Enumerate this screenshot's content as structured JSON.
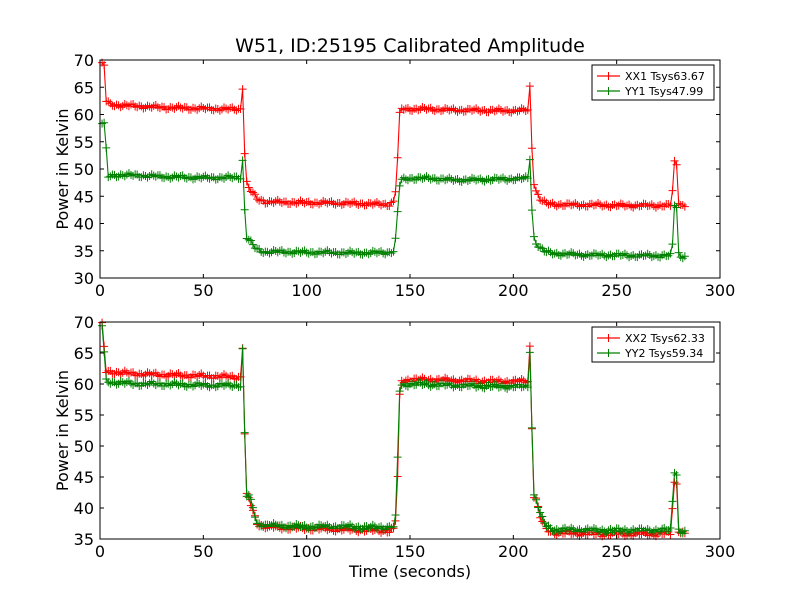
{
  "chart_data": [
    {
      "type": "line",
      "title": "W51, ID:25195 Calibrated Amplitude",
      "xlabel": "",
      "ylabel": "Power in Kelvin",
      "xlim": [
        0,
        300
      ],
      "ylim": [
        30,
        70
      ],
      "xticks": [
        0,
        50,
        100,
        150,
        200,
        250,
        300
      ],
      "yticks": [
        30,
        35,
        40,
        45,
        50,
        55,
        60,
        65,
        70
      ],
      "grid": false,
      "legend_position": "top-right",
      "series": [
        {
          "name": "XX1 Tsys63.67",
          "color": "#ff0000",
          "marker": "+",
          "x": [
            1,
            2,
            3,
            5,
            10,
            20,
            30,
            40,
            50,
            60,
            68,
            69,
            70,
            71,
            72,
            74,
            76,
            80,
            90,
            100,
            110,
            120,
            130,
            140,
            142,
            143,
            144,
            145,
            146,
            150,
            160,
            170,
            180,
            190,
            200,
            207,
            208,
            209,
            210,
            211,
            213,
            216,
            220,
            230,
            240,
            250,
            260,
            270,
            276,
            277,
            278,
            279,
            280,
            281,
            282,
            283
          ],
          "y": [
            69.2,
            69.0,
            62.5,
            61.8,
            61.7,
            61.5,
            61.3,
            61.2,
            61.1,
            61.0,
            61.0,
            65.0,
            53.0,
            47.5,
            46.5,
            45.5,
            44.5,
            44.0,
            43.9,
            43.8,
            43.8,
            43.7,
            43.6,
            43.5,
            44.0,
            46.0,
            52.0,
            60.0,
            61.0,
            61.0,
            61.0,
            60.8,
            60.8,
            60.7,
            60.7,
            60.8,
            65.0,
            54.0,
            47.5,
            46.0,
            44.5,
            43.6,
            43.5,
            43.4,
            43.4,
            43.3,
            43.3,
            43.3,
            43.3,
            46.0,
            51.2,
            50.8,
            44.0,
            43.5,
            43.3,
            43.3
          ]
        },
        {
          "name": "YY1 Tsys47.99",
          "color": "#008000",
          "marker": "+",
          "x": [
            1,
            2,
            3,
            4,
            5,
            10,
            20,
            30,
            40,
            50,
            60,
            68,
            69,
            70,
            71,
            72,
            74,
            76,
            80,
            90,
            100,
            110,
            120,
            130,
            140,
            142,
            143,
            144,
            145,
            146,
            150,
            160,
            170,
            180,
            190,
            200,
            207,
            208,
            209,
            210,
            211,
            213,
            216,
            220,
            230,
            240,
            250,
            260,
            270,
            276,
            277,
            278,
            279,
            280,
            281,
            282,
            283
          ],
          "y": [
            58.5,
            58.3,
            53.5,
            48.5,
            48.8,
            48.9,
            48.8,
            48.6,
            48.5,
            48.4,
            48.4,
            48.5,
            51.5,
            42.5,
            37.5,
            37.0,
            36.0,
            35.2,
            34.8,
            34.8,
            34.7,
            34.7,
            34.6,
            34.6,
            34.7,
            35.0,
            37.0,
            42.0,
            47.0,
            48.0,
            48.3,
            48.3,
            48.0,
            48.0,
            48.1,
            48.2,
            48.3,
            52.0,
            42.5,
            37.5,
            36.5,
            35.5,
            34.7,
            34.5,
            34.3,
            34.2,
            34.2,
            34.1,
            34.1,
            34.1,
            36.0,
            43.5,
            43.0,
            34.5,
            34.0,
            34.0,
            34.0
          ]
        }
      ]
    },
    {
      "type": "line",
      "title": "",
      "xlabel": "Time (seconds)",
      "ylabel": "Power in Kelvin",
      "xlim": [
        0,
        300
      ],
      "ylim": [
        35,
        70
      ],
      "xticks": [
        0,
        50,
        100,
        150,
        200,
        250,
        300
      ],
      "yticks": [
        35,
        40,
        45,
        50,
        55,
        60,
        65,
        70
      ],
      "grid": false,
      "legend_position": "top-right",
      "series": [
        {
          "name": "XX2 Tsys62.33",
          "color": "#ff0000",
          "marker": "+",
          "x": [
            1,
            2,
            3,
            5,
            10,
            20,
            30,
            40,
            50,
            60,
            68,
            69,
            70,
            71,
            72,
            74,
            76,
            80,
            90,
            100,
            110,
            120,
            130,
            140,
            142,
            143,
            144,
            145,
            146,
            150,
            160,
            170,
            180,
            190,
            200,
            207,
            208,
            209,
            210,
            211,
            213,
            216,
            220,
            230,
            240,
            250,
            260,
            270,
            276,
            277,
            278,
            279,
            280,
            281,
            282,
            283
          ],
          "y": [
            69.5,
            66.0,
            62.0,
            62.0,
            61.8,
            61.6,
            61.5,
            61.4,
            61.3,
            61.2,
            61.1,
            66.0,
            52.0,
            42.0,
            41.5,
            39.5,
            37.5,
            37.0,
            36.8,
            36.7,
            36.6,
            36.5,
            36.4,
            36.3,
            36.5,
            38.0,
            45.0,
            58.0,
            60.5,
            60.7,
            60.7,
            60.6,
            60.5,
            60.4,
            60.4,
            60.5,
            66.0,
            53.0,
            42.0,
            41.5,
            38.5,
            36.5,
            36.0,
            35.9,
            35.8,
            35.8,
            35.8,
            35.8,
            35.9,
            40.0,
            44.0,
            44.0,
            36.5,
            36.0,
            36.0,
            36.0
          ]
        },
        {
          "name": "YY2 Tsys59.34",
          "color": "#008000",
          "marker": "+",
          "x": [
            1,
            2,
            3,
            5,
            10,
            20,
            30,
            40,
            50,
            60,
            68,
            69,
            70,
            71,
            72,
            74,
            76,
            80,
            90,
            100,
            110,
            120,
            130,
            140,
            142,
            143,
            144,
            145,
            146,
            150,
            160,
            170,
            180,
            190,
            200,
            207,
            208,
            209,
            210,
            211,
            213,
            216,
            220,
            230,
            240,
            250,
            260,
            270,
            276,
            277,
            278,
            279,
            280,
            281,
            282,
            283
          ],
          "y": [
            69.5,
            65.0,
            60.5,
            60.3,
            60.2,
            60.0,
            60.0,
            59.9,
            59.8,
            59.8,
            59.8,
            65.5,
            52.0,
            42.0,
            42.0,
            40.0,
            37.5,
            37.2,
            37.1,
            37.0,
            37.0,
            37.0,
            36.9,
            36.9,
            37.0,
            38.5,
            48.0,
            59.0,
            59.8,
            60.0,
            59.9,
            59.8,
            59.7,
            59.6,
            59.6,
            59.6,
            65.5,
            53.0,
            42.0,
            41.5,
            39.0,
            37.0,
            36.5,
            36.5,
            36.4,
            36.4,
            36.4,
            36.4,
            36.5,
            41.0,
            46.0,
            45.5,
            36.5,
            36.2,
            36.2,
            36.2
          ]
        }
      ]
    }
  ]
}
